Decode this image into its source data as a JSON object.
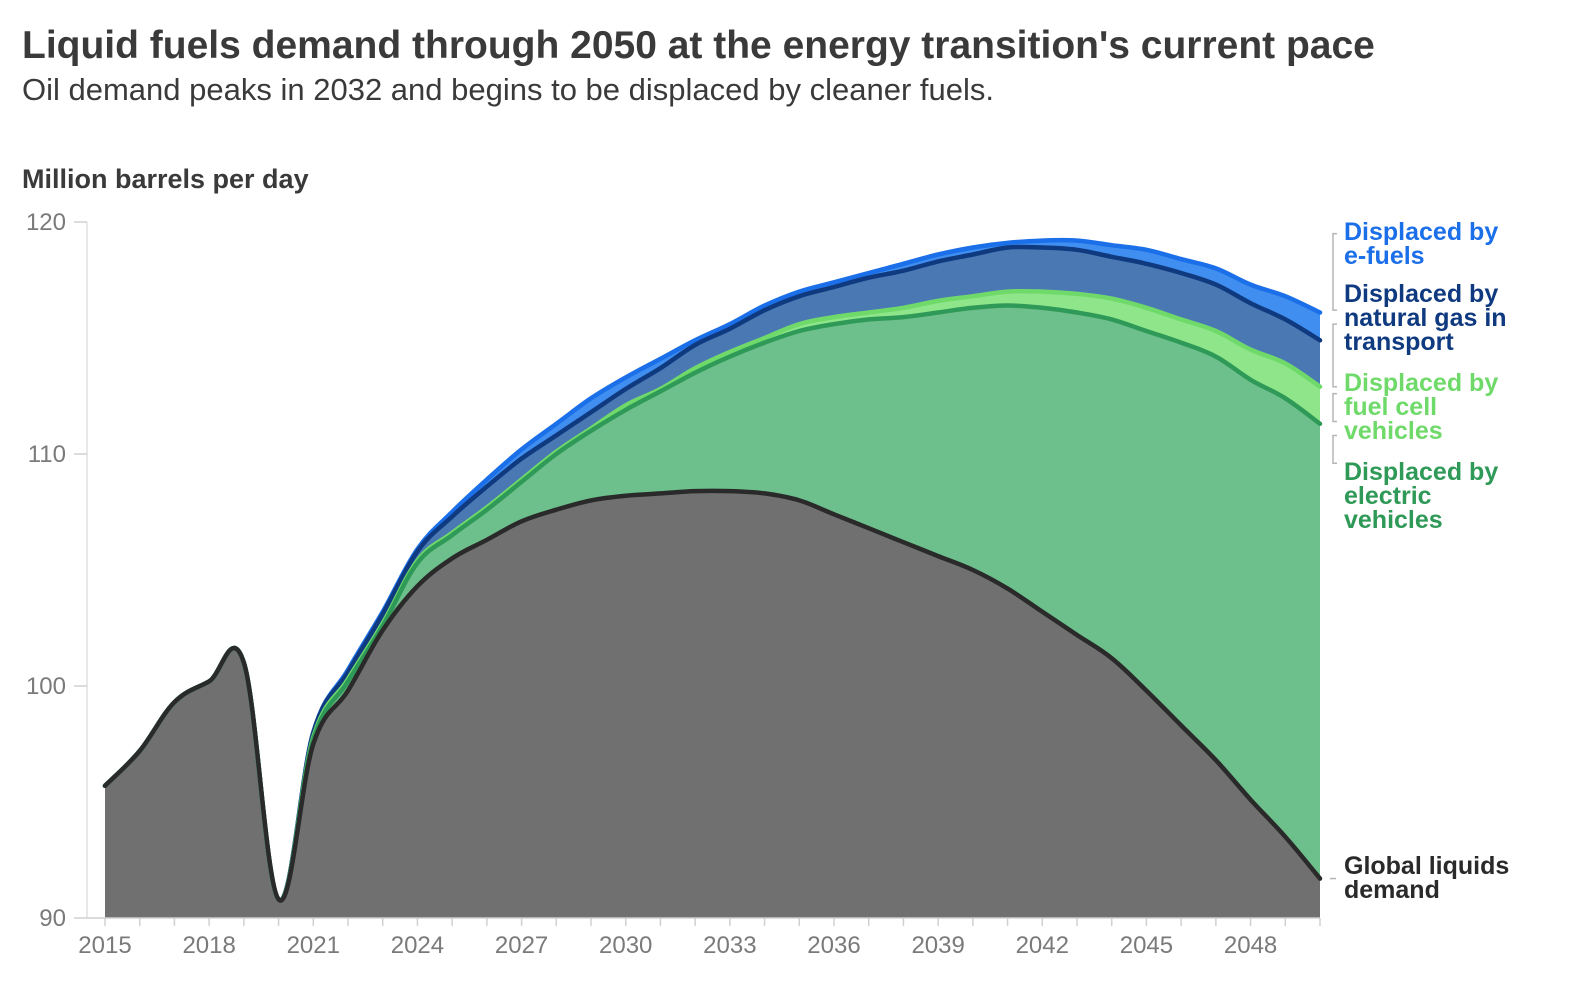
{
  "chart_data": {
    "type": "area",
    "title": "Liquid fuels demand through 2050 at the energy transition's current pace",
    "subtitle": "Oil demand peaks in 2032 and begins to be displaced by cleaner fuels.",
    "ylabel": "Million barrels per day",
    "ylim": [
      90,
      120
    ],
    "xlim": [
      2015,
      2050
    ],
    "y_ticks": [
      "90",
      "100",
      "110",
      "120"
    ],
    "x_ticks": [
      "2015",
      "2018",
      "2021",
      "2024",
      "2027",
      "2030",
      "2033",
      "2036",
      "2039",
      "2042",
      "2045",
      "2048"
    ],
    "x": [
      2015,
      2016,
      2017,
      2018,
      2019,
      2020,
      2021,
      2022,
      2023,
      2024,
      2025,
      2026,
      2027,
      2028,
      2029,
      2030,
      2031,
      2032,
      2033,
      2034,
      2035,
      2036,
      2037,
      2038,
      2039,
      2040,
      2041,
      2042,
      2043,
      2044,
      2045,
      2046,
      2047,
      2048,
      2049,
      2050
    ],
    "series": [
      {
        "name": "Global liquids demand",
        "color": "#707070",
        "line_color": "#2a2a2a",
        "values": [
          95.7,
          97.2,
          99.3,
          100.2,
          101.0,
          90.8,
          97.5,
          99.8,
          102.4,
          104.3,
          105.5,
          106.3,
          107.1,
          107.6,
          108.0,
          108.2,
          108.3,
          108.4,
          108.4,
          108.3,
          108.0,
          107.4,
          106.8,
          106.2,
          105.6,
          105.0,
          104.2,
          103.2,
          102.2,
          101.2,
          99.8,
          98.3,
          96.8,
          95.1,
          93.5,
          91.7
        ]
      },
      {
        "name": "Displaced by electric vehicles",
        "color": "#6dbf8c",
        "line_color": "#2f9a57",
        "values": [
          95.7,
          97.2,
          99.3,
          100.2,
          101.0,
          90.8,
          97.7,
          100.2,
          102.6,
          105.3,
          106.5,
          107.6,
          108.8,
          110.0,
          111.0,
          111.9,
          112.7,
          113.5,
          114.2,
          114.8,
          115.3,
          115.6,
          115.8,
          115.9,
          116.1,
          116.3,
          116.4,
          116.3,
          116.1,
          115.8,
          115.3,
          114.8,
          114.2,
          113.2,
          112.4,
          111.3
        ]
      },
      {
        "name": "Displaced by fuel cell vehicles",
        "color": "#8fe68a",
        "line_color": "#6fda6a",
        "values": [
          95.7,
          97.2,
          99.3,
          100.2,
          101.0,
          90.8,
          97.8,
          100.3,
          102.7,
          105.4,
          106.6,
          107.7,
          108.9,
          110.1,
          111.1,
          112.1,
          112.8,
          113.7,
          114.4,
          115.0,
          115.6,
          115.9,
          116.1,
          116.3,
          116.6,
          116.8,
          117.0,
          117.0,
          116.9,
          116.7,
          116.3,
          115.8,
          115.3,
          114.5,
          113.9,
          112.9
        ]
      },
      {
        "name": "Displaced by natural gas in transport",
        "color": "#4a78b3",
        "line_color": "#103a80",
        "values": [
          95.7,
          97.2,
          99.3,
          100.2,
          101.0,
          90.8,
          98.0,
          100.6,
          103.1,
          105.8,
          107.3,
          108.6,
          109.8,
          110.8,
          111.8,
          112.8,
          113.7,
          114.7,
          115.4,
          116.2,
          116.8,
          117.2,
          117.6,
          117.9,
          118.3,
          118.6,
          118.9,
          118.9,
          118.8,
          118.5,
          118.2,
          117.8,
          117.3,
          116.5,
          115.8,
          114.9
        ]
      },
      {
        "name": "Displaced by e-fuels",
        "color": "#3f8ef0",
        "line_color": "#1b6fe8",
        "values": [
          95.7,
          97.2,
          99.3,
          100.2,
          101.0,
          90.8,
          98.0,
          100.7,
          103.2,
          105.9,
          107.5,
          108.9,
          110.2,
          111.3,
          112.4,
          113.3,
          114.1,
          114.9,
          115.6,
          116.4,
          117.0,
          117.4,
          117.8,
          118.2,
          118.6,
          118.9,
          119.1,
          119.2,
          119.2,
          119.0,
          118.8,
          118.4,
          118.0,
          117.3,
          116.8,
          116.1
        ]
      }
    ],
    "labels": {
      "efuels": [
        "Displaced by",
        "e-fuels"
      ],
      "natgas": [
        "Displaced by",
        "natural gas in",
        "transport"
      ],
      "fuelcell": [
        "Displaced by",
        "fuel cell",
        "vehicles"
      ],
      "ev": [
        "Displaced by",
        "electric",
        "vehicles"
      ],
      "global": [
        "Global liquids",
        "demand"
      ]
    },
    "label_colors": {
      "efuels": "#1b6fe8",
      "natgas": "#103a80",
      "fuelcell": "#6fda6a",
      "ev": "#2f9a57",
      "global": "#2a2a2a"
    },
    "grid": false,
    "legend": "right"
  }
}
